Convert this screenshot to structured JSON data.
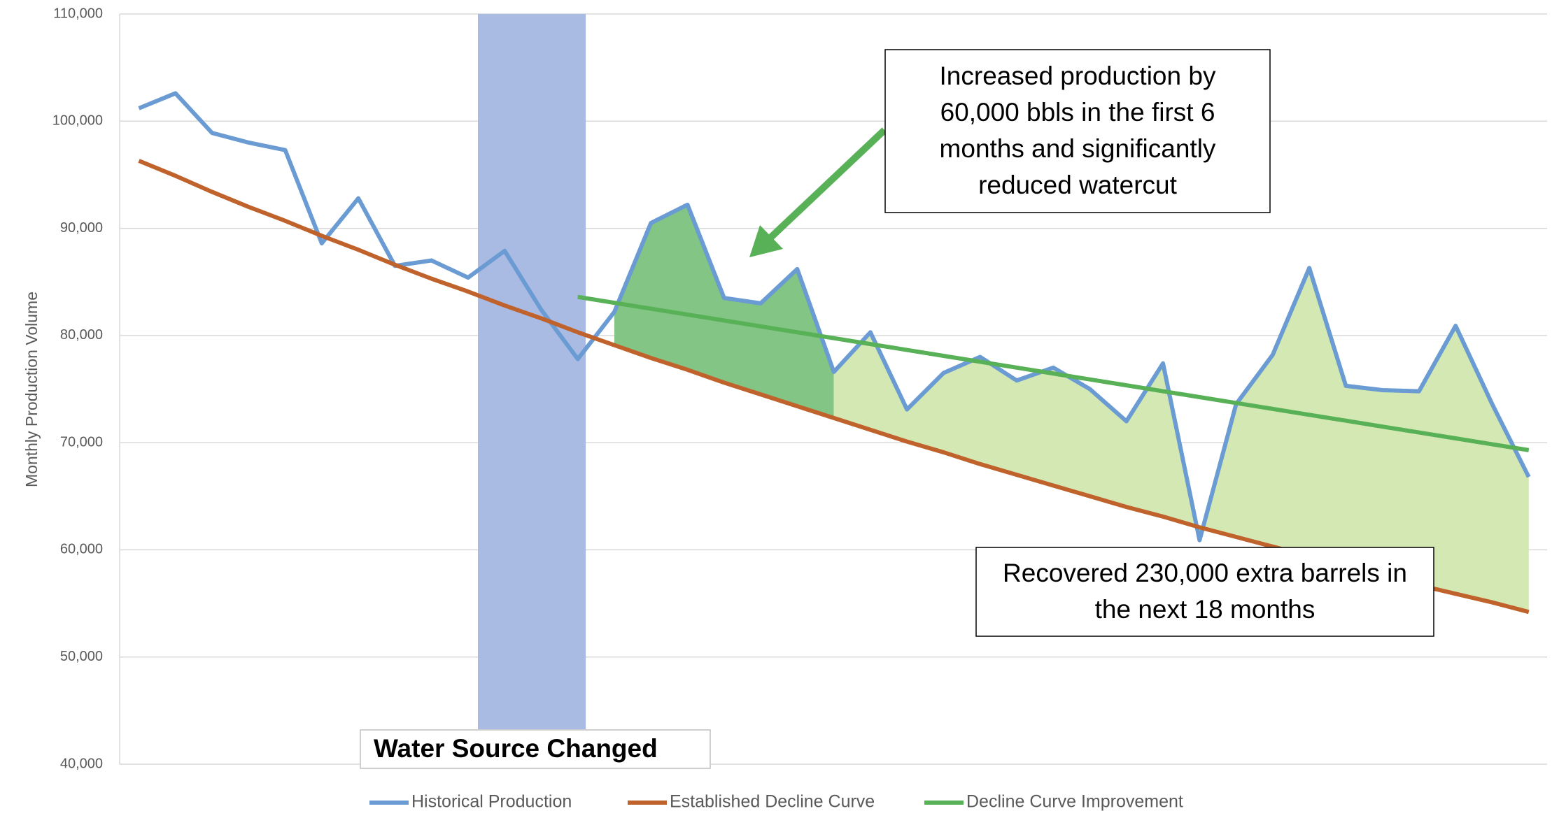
{
  "chart_data": {
    "type": "line",
    "y_label": "Monthly Production Volume",
    "categories": [
      null,
      null,
      null,
      null,
      null,
      null,
      null,
      null,
      null,
      null,
      null,
      null,
      null,
      null,
      null,
      null,
      null,
      null,
      null,
      null,
      null,
      null,
      null,
      null,
      null,
      null,
      null,
      null,
      null,
      null,
      null,
      null,
      null,
      null,
      null,
      null,
      null,
      null,
      null
    ],
    "series": [
      {
        "name": "Historical Production",
        "color": "#6a9bd3",
        "values": [
          101200,
          102600,
          98900,
          98000,
          97300,
          88600,
          92800,
          86500,
          87000,
          85400,
          87900,
          82400,
          77800,
          82200,
          90500,
          92200,
          83500,
          83000,
          86200,
          76600,
          80300,
          73100,
          76500,
          78000,
          75800,
          77000,
          75000,
          72000,
          77400,
          60900,
          73600,
          78200,
          86300,
          75300,
          74900,
          74800,
          80900,
          73600,
          66800
        ]
      },
      {
        "name": "Established Decline Curve",
        "color": "#c0622b",
        "values": [
          96300,
          94900,
          93400,
          92000,
          90700,
          89300,
          88000,
          86600,
          85300,
          84100,
          82800,
          81600,
          80300,
          79100,
          77900,
          76800,
          75600,
          74500,
          73400,
          72300,
          71200,
          70100,
          69100,
          68000,
          67000,
          66000,
          65000,
          64000,
          63100,
          62100,
          61200,
          60300,
          59400,
          58500,
          57600,
          56700,
          55900,
          55100,
          54200
        ]
      },
      {
        "name": "Decline Curve Improvement",
        "color": "#58b157",
        "values": [
          null,
          null,
          null,
          null,
          null,
          null,
          null,
          null,
          null,
          null,
          null,
          null,
          83600,
          83050,
          82500,
          81950,
          81400,
          80850,
          80300,
          79750,
          79200,
          78650,
          78100,
          77550,
          77000,
          76450,
          75900,
          75350,
          74800,
          74250,
          73700,
          73150,
          72600,
          72050,
          71500,
          70950,
          70400,
          69850,
          69300
        ]
      }
    ],
    "ylim": [
      40000,
      110000
    ],
    "yticks": [
      {
        "value": 40000,
        "label": "40,000"
      },
      {
        "value": 50000,
        "label": "50,000"
      },
      {
        "value": 60000,
        "label": "60,000"
      },
      {
        "value": 70000,
        "label": "70,000"
      },
      {
        "value": 80000,
        "label": "80,000"
      },
      {
        "value": 90000,
        "label": "90,000"
      },
      {
        "value": 100000,
        "label": "100,000"
      },
      {
        "value": 110000,
        "label": "110,000"
      }
    ],
    "grid": true,
    "legend": "bottom",
    "fill_colors": [
      "#82c584",
      "#d3e8b2"
    ],
    "highlight": {
      "label": "Water Source Changed",
      "color": "#a9bbe3"
    },
    "annotations": [
      {
        "text": [
          "Increased production by",
          "60,000 bbls in the first 6",
          "months and significantly",
          "reduced watercut"
        ],
        "arrow_color": "#58b157"
      },
      {
        "text": [
          "Recovered 230,000 extra barrels in",
          "the next 18 months"
        ]
      }
    ]
  }
}
